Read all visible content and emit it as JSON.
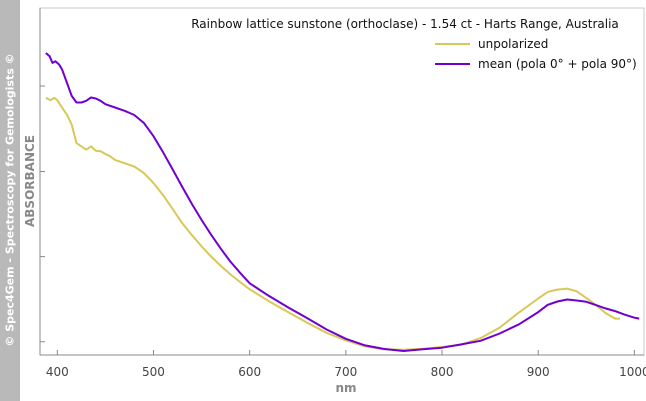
{
  "watermark": "© Spec4Gem - Spectroscopy for Gemologists ©",
  "chart_data": {
    "type": "line",
    "title": "Rainbow lattice sunstone (orthoclase) - 1.54 ct - Harts Range, Australia",
    "xlabel": "nm",
    "ylabel": "ABSORBANCE",
    "xlim": [
      382,
      1010
    ],
    "ylim": [
      0,
      1
    ],
    "x_ticks": [
      400,
      500,
      600,
      700,
      800,
      900,
      1000
    ],
    "x_tick_labels": [
      "400",
      "500",
      "600",
      "700",
      "800",
      "900",
      "1000"
    ],
    "y_ticks": [
      0.025,
      0.283,
      0.541,
      0.8
    ],
    "grid": false,
    "legend_position": "top-right",
    "series": [
      {
        "name": "unpolarized",
        "color": "#d8c858",
        "points": [
          [
            388,
            0.764
          ],
          [
            393,
            0.757
          ],
          [
            397,
            0.764
          ],
          [
            400,
            0.757
          ],
          [
            403,
            0.743
          ],
          [
            410,
            0.713
          ],
          [
            415,
            0.683
          ],
          [
            420,
            0.627
          ],
          [
            425,
            0.617
          ],
          [
            430,
            0.607
          ],
          [
            435,
            0.617
          ],
          [
            440,
            0.604
          ],
          [
            445,
            0.602
          ],
          [
            450,
            0.594
          ],
          [
            455,
            0.587
          ],
          [
            460,
            0.576
          ],
          [
            470,
            0.566
          ],
          [
            480,
            0.556
          ],
          [
            490,
            0.536
          ],
          [
            500,
            0.506
          ],
          [
            510,
            0.469
          ],
          [
            520,
            0.427
          ],
          [
            530,
            0.384
          ],
          [
            540,
            0.348
          ],
          [
            550,
            0.314
          ],
          [
            560,
            0.283
          ],
          [
            570,
            0.255
          ],
          [
            580,
            0.229
          ],
          [
            590,
            0.206
          ],
          [
            600,
            0.184
          ],
          [
            620,
            0.148
          ],
          [
            640,
            0.115
          ],
          [
            660,
            0.082
          ],
          [
            680,
            0.052
          ],
          [
            700,
            0.029
          ],
          [
            720,
            0.011
          ],
          [
            740,
            0.002
          ],
          [
            760,
            0.001
          ],
          [
            780,
            0.004
          ],
          [
            800,
            0.009
          ],
          [
            820,
            0.016
          ],
          [
            840,
            0.036
          ],
          [
            860,
            0.068
          ],
          [
            880,
            0.114
          ],
          [
            900,
            0.156
          ],
          [
            910,
            0.176
          ],
          [
            920,
            0.183
          ],
          [
            930,
            0.186
          ],
          [
            940,
            0.178
          ],
          [
            950,
            0.158
          ],
          [
            960,
            0.136
          ],
          [
            970,
            0.112
          ],
          [
            980,
            0.095
          ],
          [
            985,
            0.095
          ]
        ]
      },
      {
        "name": "mean (pola 0° + pola 90°)",
        "color": "#7000d0",
        "points": [
          [
            388,
            0.9
          ],
          [
            392,
            0.89
          ],
          [
            395,
            0.87
          ],
          [
            398,
            0.875
          ],
          [
            402,
            0.865
          ],
          [
            405,
            0.85
          ],
          [
            410,
            0.81
          ],
          [
            415,
            0.77
          ],
          [
            420,
            0.75
          ],
          [
            425,
            0.75
          ],
          [
            430,
            0.755
          ],
          [
            435,
            0.765
          ],
          [
            440,
            0.762
          ],
          [
            445,
            0.755
          ],
          [
            450,
            0.745
          ],
          [
            460,
            0.735
          ],
          [
            470,
            0.725
          ],
          [
            480,
            0.712
          ],
          [
            490,
            0.688
          ],
          [
            500,
            0.648
          ],
          [
            510,
            0.599
          ],
          [
            520,
            0.547
          ],
          [
            530,
            0.494
          ],
          [
            540,
            0.442
          ],
          [
            550,
            0.394
          ],
          [
            560,
            0.349
          ],
          [
            570,
            0.307
          ],
          [
            580,
            0.268
          ],
          [
            590,
            0.234
          ],
          [
            600,
            0.202
          ],
          [
            620,
            0.164
          ],
          [
            640,
            0.129
          ],
          [
            660,
            0.096
          ],
          [
            680,
            0.062
          ],
          [
            700,
            0.034
          ],
          [
            720,
            0.014
          ],
          [
            740,
            0.003
          ],
          [
            760,
            -0.003
          ],
          [
            780,
            0.002
          ],
          [
            800,
            0.007
          ],
          [
            820,
            0.017
          ],
          [
            840,
            0.028
          ],
          [
            860,
            0.05
          ],
          [
            880,
            0.078
          ],
          [
            900,
            0.115
          ],
          [
            910,
            0.137
          ],
          [
            920,
            0.147
          ],
          [
            930,
            0.153
          ],
          [
            940,
            0.15
          ],
          [
            950,
            0.146
          ],
          [
            960,
            0.136
          ],
          [
            970,
            0.126
          ],
          [
            980,
            0.118
          ],
          [
            990,
            0.107
          ],
          [
            1000,
            0.098
          ],
          [
            1005,
            0.095
          ]
        ]
      }
    ]
  }
}
